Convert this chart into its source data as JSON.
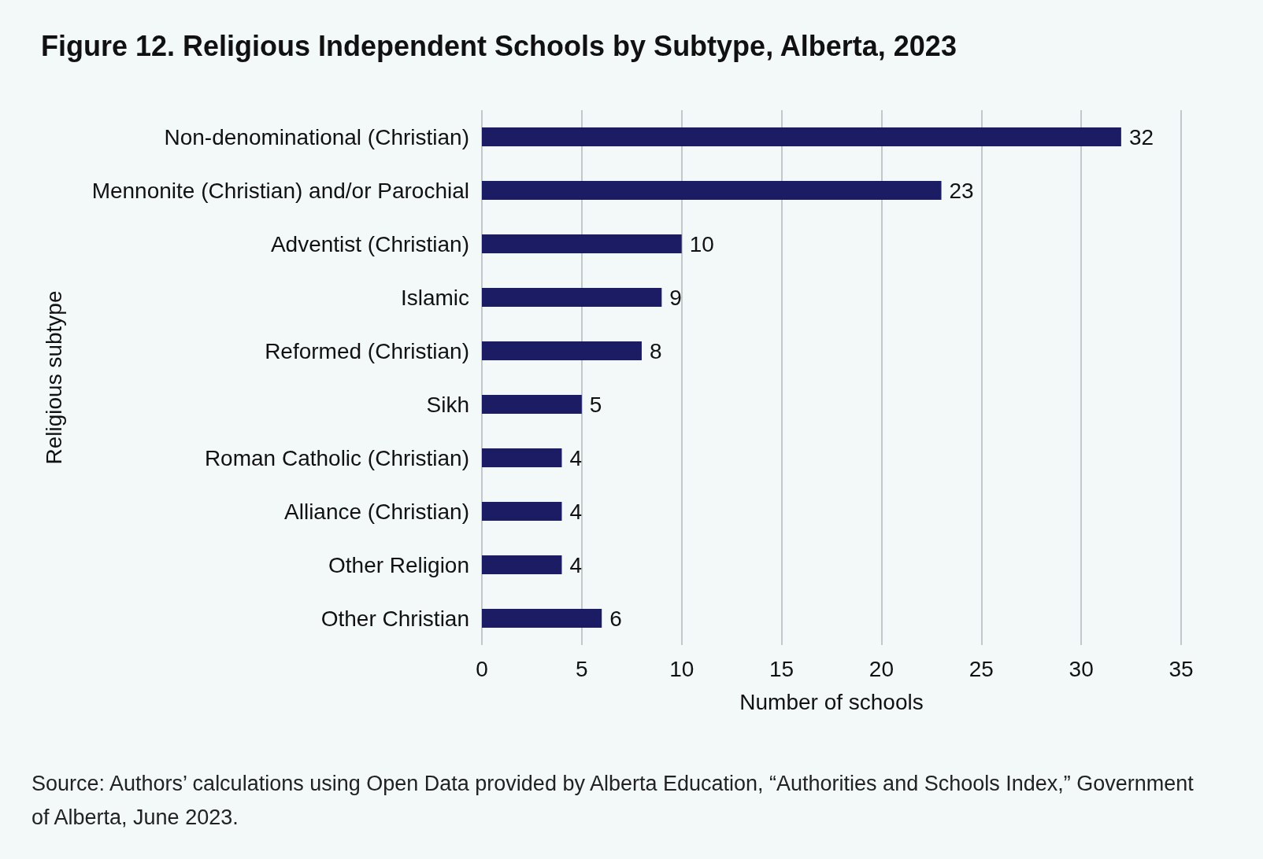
{
  "chart_data": {
    "type": "bar",
    "orientation": "horizontal",
    "title": "Figure 12. Religious Independent Schools by Subtype, Alberta, 2023",
    "xlabel": "Number of schools",
    "ylabel": "Religious subtype",
    "categories": [
      "Non-denominational (Christian)",
      "Mennonite (Christian) and/or Parochial",
      "Adventist (Christian)",
      "Islamic",
      "Reformed (Christian)",
      "Sikh",
      "Roman Catholic (Christian)",
      "Alliance (Christian)",
      "Other Religion",
      "Other Christian"
    ],
    "values": [
      32,
      23,
      10,
      9,
      8,
      5,
      4,
      4,
      4,
      6
    ],
    "color": "#1c1c64",
    "xlim": [
      0,
      35
    ],
    "xticks": [
      0,
      5,
      10,
      15,
      20,
      25,
      30,
      35
    ],
    "grid": "x",
    "data_labels": true,
    "annotations": [
      "Source: Authors’ calculations using Open Data provided by Alberta Education, “Authorities and Schools Index,” Government of Alberta, June 2023."
    ]
  }
}
